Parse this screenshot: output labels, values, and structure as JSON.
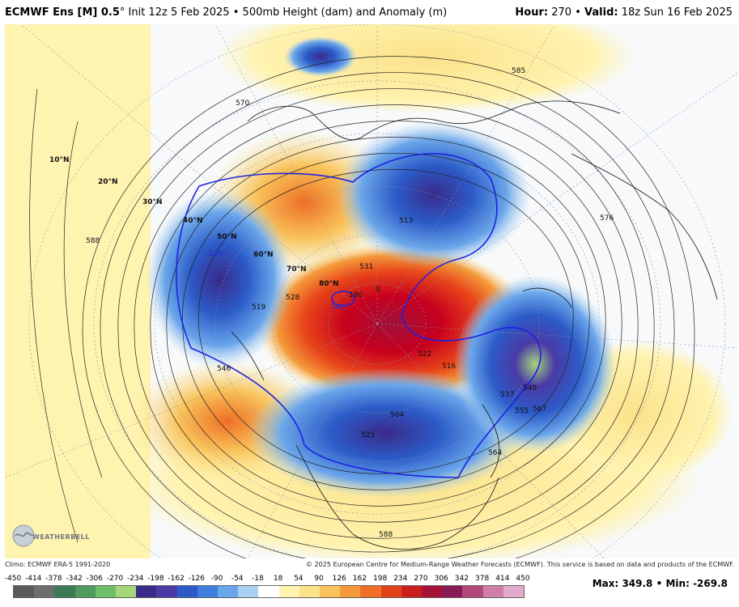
{
  "header": {
    "model": "ECMWF Ens [M] 0.5",
    "degree": "°",
    "init": "Init 12z 5 Feb 2025",
    "bullet": "•",
    "product": "500mb Height (dam) and Anomaly (m)",
    "hour_label": "Hour:",
    "hour_value": "270",
    "valid_label": "Valid:",
    "valid_value": "18z Sun 16 Feb 2025"
  },
  "map": {
    "latitude_labels": [
      "10°N",
      "20°N",
      "30°N",
      "40°N",
      "50°N",
      "60°N",
      "70°N",
      "80°N"
    ],
    "contour_labels": [
      "588",
      "570",
      "546",
      "528",
      "519",
      "510",
      "531",
      "540",
      "180",
      "0",
      "522",
      "516",
      "513",
      "504",
      "525",
      "537",
      "549",
      "555",
      "567",
      "564",
      "576",
      "588",
      "585"
    ],
    "colors": {
      "strong_positive": "#c8001e",
      "positive": "#f26a1b",
      "weak_positive": "#fbe28a",
      "strong_negative": "#2a3fae",
      "negative": "#4d8ae0",
      "weak_negative": "#a9cff2",
      "contour_line": "#222222",
      "highlight_contour": "#1c22e0"
    }
  },
  "footer": {
    "climo": "Climo: ECMWF ERA-5 1991-2020",
    "copyright": "© 2025 European Centre for Medium-Range Weather Forecasts (ECMWF). This service is based on data and products of the ECMWF."
  },
  "colorbar": {
    "ticks": [
      "-450",
      "-414",
      "-378",
      "-342",
      "-306",
      "-270",
      "-234",
      "-198",
      "-162",
      "-126",
      "-90",
      "-54",
      "-18",
      "18",
      "54",
      "90",
      "126",
      "162",
      "198",
      "234",
      "270",
      "306",
      "342",
      "378",
      "414",
      "450"
    ],
    "colors": [
      "#5a5a5a",
      "#6e6e6e",
      "#3c7a55",
      "#4f9a5f",
      "#6fbf6a",
      "#a5d67a",
      "#3a2a8a",
      "#4a3aa5",
      "#2c5bc8",
      "#3f7fdc",
      "#6aa6ea",
      "#a9cff2",
      "#ffffff",
      "#fff3b0",
      "#fbe28a",
      "#f9c25a",
      "#f59a3a",
      "#ee6f25",
      "#e0421a",
      "#c81e1e",
      "#a8123a",
      "#8a1a55",
      "#b0487a",
      "#cf7fa5",
      "#e2aacb"
    ]
  },
  "stats": {
    "max_label": "Max:",
    "max_value": "349.8",
    "sep": "•",
    "min_label": "Min:",
    "min_value": "-269.8"
  },
  "logo": {
    "text": "WEATHERBELL"
  }
}
